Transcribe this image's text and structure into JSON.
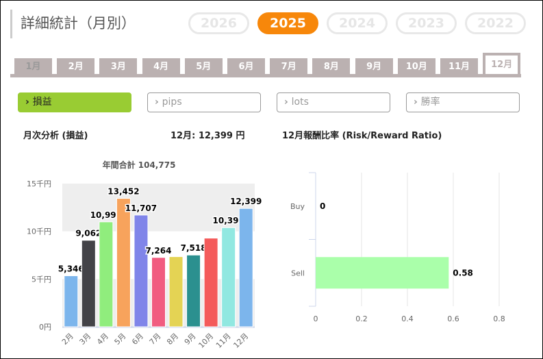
{
  "title": "詳細統計（月別）",
  "years": [
    {
      "label": "2026",
      "active": false
    },
    {
      "label": "2025",
      "active": true
    },
    {
      "label": "2024",
      "active": false
    },
    {
      "label": "2023",
      "active": false
    },
    {
      "label": "2022",
      "active": false
    }
  ],
  "months": [
    {
      "label": "1月",
      "state": "dim"
    },
    {
      "label": "2月",
      "state": ""
    },
    {
      "label": "3月",
      "state": ""
    },
    {
      "label": "4月",
      "state": ""
    },
    {
      "label": "5月",
      "state": ""
    },
    {
      "label": "6月",
      "state": ""
    },
    {
      "label": "7月",
      "state": ""
    },
    {
      "label": "8月",
      "state": ""
    },
    {
      "label": "9月",
      "state": ""
    },
    {
      "label": "10月",
      "state": ""
    },
    {
      "label": "11月",
      "state": ""
    },
    {
      "label": "12月",
      "state": "active"
    }
  ],
  "filters": [
    {
      "label": "損益",
      "active": true
    },
    {
      "label": "pips",
      "active": false
    },
    {
      "label": "lots",
      "active": false
    },
    {
      "label": "勝率",
      "active": false
    }
  ],
  "headers": {
    "left": "月次分析 (損益)",
    "month_value": "12月:  12,399 円",
    "right": "12月報酬比率 (Risk/Reward Ratio)"
  },
  "chart_data": [
    {
      "type": "bar",
      "title": "年間合計 104,775",
      "categories": [
        "2月",
        "3月",
        "4月",
        "5月",
        "6月",
        "7月",
        "8月",
        "9月",
        "10月",
        "11月",
        "12月"
      ],
      "values": [
        5346,
        9062,
        10995,
        13452,
        11707,
        7264,
        7350,
        7518,
        9291,
        10391,
        12399
      ],
      "labels": [
        "5,346",
        "9,062",
        "10,995",
        "13,452",
        "11,707",
        "7,264",
        "",
        "7,518",
        "",
        "10,391",
        "12,399"
      ],
      "colors": [
        "#7cb5ec",
        "#434348",
        "#90ed7d",
        "#f7a35c",
        "#8085e9",
        "#f15c80",
        "#e4d354",
        "#2b908f",
        "#f45b5b",
        "#91e8e1",
        "#7cb5ec"
      ],
      "yticks": [
        {
          "v": 0,
          "label": "0円"
        },
        {
          "v": 5000,
          "label": "5千円"
        },
        {
          "v": 10000,
          "label": "10千円"
        },
        {
          "v": 15000,
          "label": "15千円"
        }
      ],
      "ylim": [
        0,
        15000
      ]
    },
    {
      "type": "bar",
      "orientation": "horizontal",
      "categories": [
        "Buy",
        "Sell"
      ],
      "values": [
        0,
        0.58
      ],
      "labels": [
        "0",
        "0.58"
      ],
      "color": "#aaffaa",
      "xticks": [
        "0",
        "0.2",
        "0.4",
        "0.6",
        "0.8"
      ],
      "xlim": [
        0,
        0.8
      ]
    }
  ]
}
